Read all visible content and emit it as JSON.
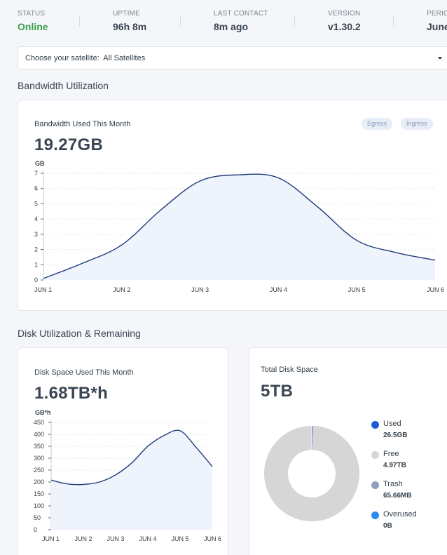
{
  "status_bar": {
    "items": [
      {
        "label": "STATUS",
        "value": "Online"
      },
      {
        "label": "UPTIME",
        "value": "96h 8m"
      },
      {
        "label": "LAST CONTACT",
        "value": "8m ago"
      },
      {
        "label": "VERSION",
        "value": "v1.30.2"
      },
      {
        "label": "PERIOD",
        "value": "June"
      }
    ]
  },
  "satellite_select": {
    "label": "Choose your satellite:",
    "value": "All Satellites"
  },
  "bandwidth": {
    "section_title": "Bandwidth Utilization",
    "card_title": "Bandwidth Used This Month",
    "total": "19.27GB",
    "legend": [
      "Egress",
      "Ingress"
    ]
  },
  "disk": {
    "section_title": "Disk Utilization & Remaining",
    "card_title": "Disk Space Used This Month",
    "total": "1.68TB*h"
  },
  "total_disk": {
    "card_title": "Total Disk Space",
    "total": "5TB",
    "legend": [
      {
        "label": "Used",
        "value": "26.5GB",
        "color": "#1e5bd6"
      },
      {
        "label": "Free",
        "value": "4.97TB",
        "color": "#d6d6d6"
      },
      {
        "label": "Trash",
        "value": "65.66MB",
        "color": "#8aa0bd"
      },
      {
        "label": "Overused",
        "value": "0B",
        "color": "#2e8cf0"
      }
    ]
  },
  "chart_data": [
    {
      "type": "area",
      "title": "Bandwidth Used This Month",
      "ylabel": "GB",
      "xlabel": "",
      "categories": [
        "JUN 1",
        "JUN 2",
        "JUN 3",
        "JUN 4",
        "JUN 5",
        "JUN 6"
      ],
      "x": [
        0,
        0.5,
        1,
        1.5,
        2,
        2.5,
        3,
        3.5,
        4,
        4.5,
        5
      ],
      "values": [
        0.1,
        1.1,
        2.3,
        4.6,
        6.5,
        6.9,
        6.7,
        4.8,
        2.6,
        1.8,
        1.3
      ],
      "yticks": [
        0,
        1,
        2,
        3,
        4,
        5,
        6,
        7
      ],
      "ylim": [
        0,
        7
      ],
      "line_color": "#1f3a7a",
      "fill_color": "#eef3fc"
    },
    {
      "type": "area",
      "title": "Disk Space Used This Month",
      "ylabel": "GB*h",
      "xlabel": "",
      "categories": [
        "JUN 1",
        "JUN 2",
        "JUN 3",
        "JUN 4",
        "JUN 5",
        "JUN 6"
      ],
      "x": [
        0,
        0.5,
        1,
        1.5,
        2,
        2.5,
        3,
        3.5,
        4,
        4.5,
        5
      ],
      "values": [
        208,
        192,
        190,
        200,
        230,
        280,
        350,
        395,
        415,
        345,
        265
      ],
      "yticks": [
        0,
        50,
        100,
        150,
        200,
        250,
        300,
        350,
        400,
        450
      ],
      "ylim": [
        0,
        450
      ],
      "line_color": "#1f3a7a",
      "fill_color": "#eef3fc"
    },
    {
      "type": "pie",
      "title": "Total Disk Space",
      "labels": [
        "Used",
        "Free",
        "Trash",
        "Overused"
      ],
      "values": [
        26.5,
        4970,
        0.06566,
        0
      ],
      "unit": "GB",
      "colors": [
        "#1e5bd6",
        "#d6d6d6",
        "#8aa0bd",
        "#2e8cf0"
      ]
    }
  ]
}
